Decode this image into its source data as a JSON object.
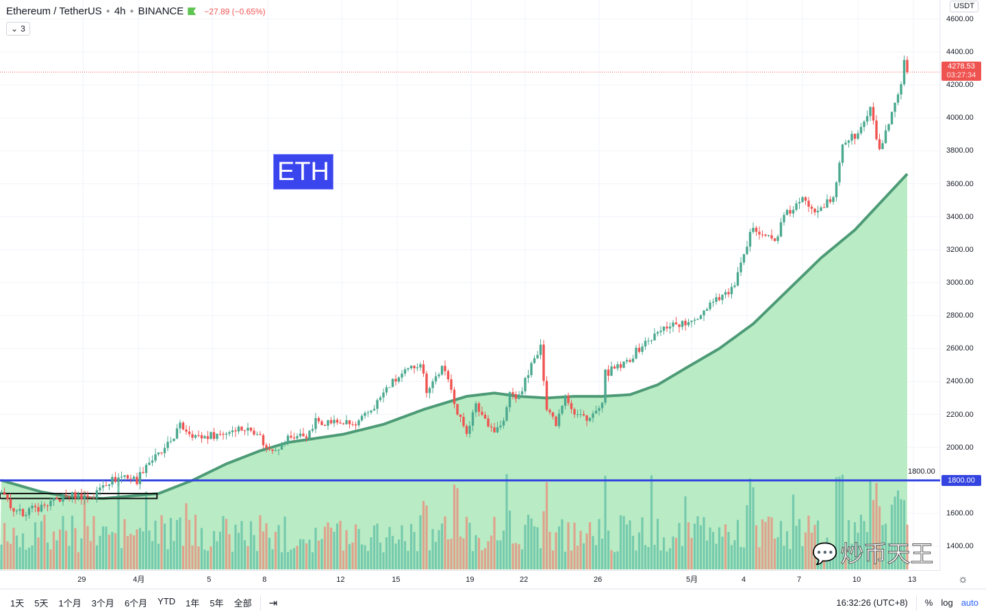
{
  "header": {
    "symbol": "Ethereum / TetherUS",
    "interval": "4h",
    "exchange": "BINANCE",
    "change": "−27.89 (−0.65%)",
    "indicators_count": "3"
  },
  "label": "ETH",
  "price_axis": {
    "currency": "USDT",
    "last_price": "4278.53",
    "countdown": "03:27:34",
    "line_label": "1800.00"
  },
  "bottom": {
    "ranges": [
      "1天",
      "5天",
      "1个月",
      "3个月",
      "6个月",
      "YTD",
      "1年",
      "5年",
      "全部"
    ],
    "time": "16:32:26 (UTC+8)",
    "percent": "%",
    "log": "log",
    "auto": "auto"
  },
  "watermark": "炒币天王",
  "colors": {
    "up": "#4aa88f",
    "down": "#ef5350",
    "vol_up": "#6ec7ab",
    "vol_down": "#e39a86",
    "fill": "#b9ebc4",
    "sma": "#4c9a76",
    "hline": "#3344e0",
    "label_bg": "#3b45ee"
  },
  "chart_data": {
    "type": "candlestick",
    "title": "Ethereum / TetherUS 4h BINANCE",
    "ylim": [
      1290,
      4640
    ],
    "y_ticks": [
      1400,
      1600,
      1800,
      2000,
      2200,
      2400,
      2600,
      2800,
      3000,
      3200,
      3400,
      3600,
      3800,
      4000,
      4200,
      4400,
      4600
    ],
    "y_tick_labels": [
      "1400.00",
      "1600.00",
      "1800.00",
      "2000.00",
      "2200.00",
      "2400.00",
      "2600.00",
      "2800.00",
      "3000.00",
      "3200.00",
      "3400.00",
      "3600.00",
      "3800.00",
      "4000.00",
      "4200.00",
      "4400.00",
      "4600.00"
    ],
    "x_ticks": [
      {
        "candle": 26.5,
        "label": "29"
      },
      {
        "candle": 44.5,
        "label": "4月"
      },
      {
        "candle": 68.5,
        "label": "5"
      },
      {
        "candle": 86.5,
        "label": "8"
      },
      {
        "candle": 110.5,
        "label": "12"
      },
      {
        "candle": 128.5,
        "label": "15"
      },
      {
        "candle": 152.5,
        "label": "19"
      },
      {
        "candle": 170,
        "label": "22"
      },
      {
        "candle": 194,
        "label": "26"
      },
      {
        "candle": 224,
        "label": "5月"
      },
      {
        "candle": 242,
        "label": "4"
      },
      {
        "candle": 260,
        "label": "7"
      },
      {
        "candle": 278,
        "label": "10"
      },
      {
        "candle": 296,
        "label": "13"
      }
    ],
    "candle_count": 295,
    "close_keypoints": [
      [
        0,
        1720
      ],
      [
        3,
        1640
      ],
      [
        4,
        1590
      ],
      [
        13,
        1640
      ],
      [
        22,
        1710
      ],
      [
        30,
        1700
      ],
      [
        33,
        1780
      ],
      [
        40,
        1830
      ],
      [
        44,
        1800
      ],
      [
        47,
        1900
      ],
      [
        53,
        1980
      ],
      [
        58,
        2130
      ],
      [
        64,
        2060
      ],
      [
        73,
        2090
      ],
      [
        76,
        2120
      ],
      [
        83,
        2100
      ],
      [
        86,
        1990
      ],
      [
        91,
        2010
      ],
      [
        93,
        2060
      ],
      [
        100,
        2080
      ],
      [
        102,
        2160
      ],
      [
        111,
        2150
      ],
      [
        115,
        2130
      ],
      [
        121,
        2250
      ],
      [
        126,
        2380
      ],
      [
        133,
        2480
      ],
      [
        136,
        2520
      ],
      [
        138,
        2350
      ],
      [
        143,
        2480
      ],
      [
        146,
        2370
      ],
      [
        148,
        2200
      ],
      [
        151,
        2100
      ],
      [
        154,
        2250
      ],
      [
        160,
        2100
      ],
      [
        163,
        2150
      ],
      [
        165,
        2330
      ],
      [
        168,
        2300
      ],
      [
        171,
        2460
      ],
      [
        175,
        2600
      ],
      [
        177,
        2250
      ],
      [
        180,
        2150
      ],
      [
        183,
        2330
      ],
      [
        186,
        2200
      ],
      [
        191,
        2180
      ],
      [
        195,
        2250
      ],
      [
        196,
        2450
      ],
      [
        202,
        2500
      ],
      [
        208,
        2620
      ],
      [
        217,
        2750
      ],
      [
        224,
        2750
      ],
      [
        231,
        2900
      ],
      [
        237,
        2950
      ],
      [
        241,
        3150
      ],
      [
        244,
        3350
      ],
      [
        247,
        3300
      ],
      [
        251,
        3250
      ],
      [
        254,
        3400
      ],
      [
        260,
        3500
      ],
      [
        264,
        3450
      ],
      [
        270,
        3500
      ],
      [
        273,
        3850
      ],
      [
        278,
        3900
      ],
      [
        282,
        4050
      ],
      [
        285,
        3800
      ],
      [
        288,
        3950
      ],
      [
        292,
        4200
      ],
      [
        293,
        4330
      ],
      [
        294,
        4278.53
      ]
    ],
    "sma_keypoints": [
      [
        0,
        1800
      ],
      [
        13,
        1730
      ],
      [
        22,
        1700
      ],
      [
        33,
        1690
      ],
      [
        51,
        1720
      ],
      [
        62,
        1800
      ],
      [
        73,
        1900
      ],
      [
        84,
        1980
      ],
      [
        93,
        2030
      ],
      [
        111,
        2080
      ],
      [
        124,
        2140
      ],
      [
        137,
        2230
      ],
      [
        151,
        2310
      ],
      [
        160,
        2330
      ],
      [
        168,
        2310
      ],
      [
        177,
        2300
      ],
      [
        186,
        2310
      ],
      [
        195,
        2310
      ],
      [
        204,
        2320
      ],
      [
        213,
        2380
      ],
      [
        222,
        2480
      ],
      [
        233,
        2600
      ],
      [
        244,
        2750
      ],
      [
        255,
        2950
      ],
      [
        266,
        3150
      ],
      [
        277,
        3320
      ],
      [
        286,
        3500
      ],
      [
        294,
        3660
      ]
    ],
    "horizontal_line": 1800,
    "last_price": 4278.53,
    "box_price_range": [
      1690,
      1720
    ],
    "box_candle_range": [
      0,
      50.5
    ]
  }
}
